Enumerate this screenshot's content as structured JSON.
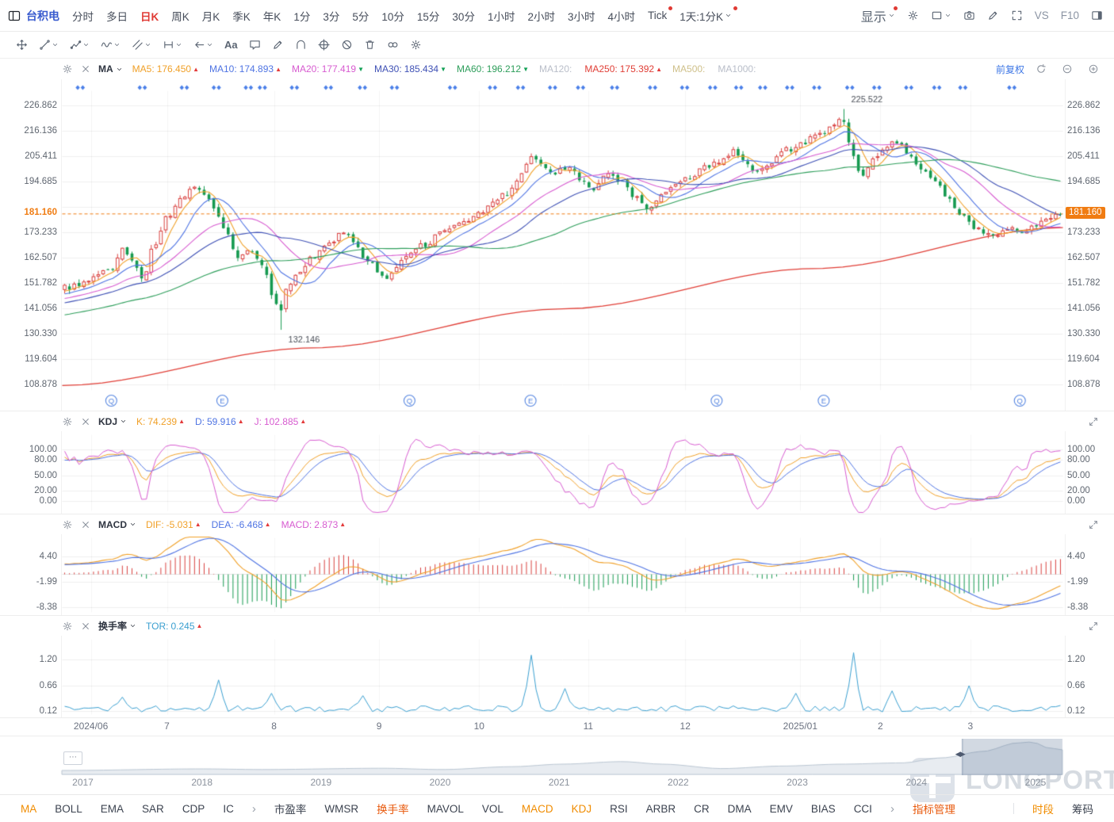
{
  "header": {
    "stock_name": "台积电",
    "timeframes": [
      {
        "label": "分时"
      },
      {
        "label": "多日"
      },
      {
        "label": "日K",
        "selected": true
      },
      {
        "label": "周K"
      },
      {
        "label": "月K"
      },
      {
        "label": "季K"
      },
      {
        "label": "年K"
      },
      {
        "label": "1分"
      },
      {
        "label": "3分"
      },
      {
        "label": "5分"
      },
      {
        "label": "10分"
      },
      {
        "label": "15分"
      },
      {
        "label": "30分"
      },
      {
        "label": "1小时"
      },
      {
        "label": "2小时"
      },
      {
        "label": "3小时"
      },
      {
        "label": "4小时"
      },
      {
        "label": "Tick",
        "dot": true
      },
      {
        "label": "1天:1分K",
        "dot": true,
        "dropdown": true
      }
    ],
    "display_label": "显示",
    "vs_label": "VS",
    "f10_label": "F10"
  },
  "drawbar": {
    "text_tool_label": "Aa",
    "tools": [
      {
        "name": "pan-tool"
      },
      {
        "name": "trendline-tool",
        "dd": true
      },
      {
        "name": "polyline-tool",
        "dd": true
      },
      {
        "name": "wave-tool",
        "dd": true
      },
      {
        "name": "channel-tool",
        "dd": true
      },
      {
        "name": "measure-tool",
        "dd": true
      },
      {
        "name": "arrow-tool",
        "dd": true
      },
      {
        "name": "text-tool"
      },
      {
        "name": "comment-tool"
      },
      {
        "name": "pencil-tool"
      },
      {
        "name": "arc-tool"
      },
      {
        "name": "fib-circle-tool"
      },
      {
        "name": "hide-drawings-button"
      },
      {
        "name": "delete-drawings-button"
      },
      {
        "name": "magnet-tool"
      },
      {
        "name": "drawing-settings-button",
        "icon": "gear"
      }
    ]
  },
  "main_panel": {
    "indicator_label": "MA",
    "items": [
      {
        "label": "MA5:",
        "value": "176.450",
        "color": "#f0a028",
        "dir": "up"
      },
      {
        "label": "MA10:",
        "value": "174.893",
        "color": "#4f74e3",
        "dir": "up"
      },
      {
        "label": "MA20:",
        "value": "177.419",
        "color": "#d75bd0",
        "dir": "down"
      },
      {
        "label": "MA30:",
        "value": "185.434",
        "color": "#3f51b5",
        "dir": "down"
      },
      {
        "label": "MA60:",
        "value": "196.212",
        "color": "#2e9e5b",
        "dir": "down"
      },
      {
        "label": "MA120:",
        "value": "",
        "color": "#b9bec9",
        "dir": ""
      },
      {
        "label": "MA250:",
        "value": "175.392",
        "color": "#e03e36",
        "dir": "up"
      },
      {
        "label": "MA500:",
        "value": "",
        "color": "#cfc08a",
        "dir": ""
      },
      {
        "label": "MA1000:",
        "value": "",
        "color": "#b9bec9",
        "dir": ""
      }
    ],
    "adjust_label": "前复权",
    "price_labels": [
      "226.862",
      "216.136",
      "205.411",
      "194.685",
      "173.233",
      "162.507",
      "151.782",
      "141.056",
      "130.330",
      "119.604",
      "108.878"
    ],
    "current_price": "181.160"
  },
  "kdj_panel": {
    "name": "KDJ",
    "items": [
      {
        "label": "K:",
        "value": "74.239",
        "color": "#f0a028",
        "dir": "up"
      },
      {
        "label": "D:",
        "value": "59.916",
        "color": "#4f74e3",
        "dir": "up"
      },
      {
        "label": "J:",
        "value": "102.885",
        "color": "#d75bd0",
        "dir": "up"
      }
    ],
    "axis": [
      "100.00",
      "80.00",
      "50.00",
      "20.00",
      "0.00"
    ]
  },
  "macd_panel": {
    "name": "MACD",
    "items": [
      {
        "label": "DIF:",
        "value": "-5.031",
        "color": "#f0a028",
        "dir": "up"
      },
      {
        "label": "DEA:",
        "value": "-6.468",
        "color": "#4f74e3",
        "dir": "up"
      },
      {
        "label": "MACD:",
        "value": "2.873",
        "color": "#d75bd0",
        "dir": "up"
      }
    ],
    "axis": [
      "4.40",
      "-1.99",
      "-8.38"
    ]
  },
  "tor_panel": {
    "name": "换手率",
    "items": [
      {
        "label": "TOR:",
        "value": "0.245",
        "color": "#3a9fd0",
        "dir": "up"
      }
    ],
    "axis": [
      "1.20",
      "0.66",
      "0.12"
    ]
  },
  "time_axis": [
    {
      "text": "2024/06",
      "f": 0.029
    },
    {
      "text": "7",
      "f": 0.105
    },
    {
      "text": "8",
      "f": 0.212
    },
    {
      "text": "9",
      "f": 0.317
    },
    {
      "text": "10",
      "f": 0.417
    },
    {
      "text": "11",
      "f": 0.526
    },
    {
      "text": "12",
      "f": 0.623
    },
    {
      "text": "2025/01",
      "f": 0.738
    },
    {
      "text": "2",
      "f": 0.818
    },
    {
      "text": "3",
      "f": 0.908
    }
  ],
  "markers": {
    "events_f": [
      0.018,
      0.08,
      0.122,
      0.154,
      0.186,
      0.2,
      0.232,
      0.266,
      0.3,
      0.332,
      0.39,
      0.43,
      0.458,
      0.49,
      0.518,
      0.552,
      0.59,
      0.622,
      0.65,
      0.676,
      0.7,
      0.727,
      0.754,
      0.787,
      0.814,
      0.846,
      0.874,
      0.9,
      0.949
    ],
    "announcements": [
      {
        "t": "Q",
        "f": 0.049
      },
      {
        "t": "E",
        "f": 0.16
      },
      {
        "t": "Q",
        "f": 0.347
      },
      {
        "t": "E",
        "f": 0.468
      },
      {
        "t": "Q",
        "f": 0.654
      },
      {
        "t": "E",
        "f": 0.761
      },
      {
        "t": "Q",
        "f": 0.957
      }
    ]
  },
  "annotations": {
    "high": "225.522",
    "low": "132.146"
  },
  "navigator": {
    "years": [
      {
        "text": "2017",
        "f": 0.021
      },
      {
        "text": "2018",
        "f": 0.14
      },
      {
        "text": "2019",
        "f": 0.259
      },
      {
        "text": "2020",
        "f": 0.378
      },
      {
        "text": "2021",
        "f": 0.497
      },
      {
        "text": "2022",
        "f": 0.616
      },
      {
        "text": "2023",
        "f": 0.735
      },
      {
        "text": "2024",
        "f": 0.854
      },
      {
        "text": "2025",
        "f": 0.973
      }
    ],
    "window": [
      0.9,
      1.0
    ],
    "menu_label": "⋯",
    "handle_label": "◀▶"
  },
  "tabbar": {
    "left": [
      {
        "label": "MA",
        "active": true
      },
      {
        "label": "BOLL"
      },
      {
        "label": "EMA"
      },
      {
        "label": "SAR"
      },
      {
        "label": "CDP"
      },
      {
        "label": "IC"
      }
    ],
    "mid": [
      {
        "label": "市盈率"
      },
      {
        "label": "WMSR"
      },
      {
        "label": "换手率",
        "hot": true
      },
      {
        "label": "MAVOL"
      },
      {
        "label": "VOL"
      },
      {
        "label": "MACD",
        "active": true
      },
      {
        "label": "KDJ",
        "active": true
      },
      {
        "label": "RSI"
      },
      {
        "label": "ARBR"
      },
      {
        "label": "CR"
      },
      {
        "label": "DMA"
      },
      {
        "label": "EMV"
      },
      {
        "label": "BIAS"
      },
      {
        "label": "CCI"
      }
    ],
    "manage_label": "指标管理",
    "right": [
      {
        "label": "时段",
        "active": true
      },
      {
        "label": "筹码"
      }
    ]
  },
  "watermark": "LONGPORT",
  "colors": {
    "up": "#d9403f",
    "down": "#169a50",
    "ma": [
      "#f0a028",
      "#4f74e3",
      "#d75bd0",
      "#3f51b5",
      "#2e9e5b"
    ],
    "ma250": "#e03e36",
    "kdj": [
      "#f0a028",
      "#4f74e3",
      "#d75bd0"
    ],
    "dif": "#f0a028",
    "dea": "#4f74e3",
    "tor": "#3a9fd0",
    "current": "#f07c12",
    "marker": "#4a7fe8",
    "grid": "#efefef",
    "tab_active": "#f08c00",
    "tab_hot": "#e8590c"
  },
  "chart_data": {
    "type": "candlestick",
    "title": "台积电 日K",
    "days": 208,
    "prehistory_days": 60,
    "prehistory_range": [
      128,
      148
    ],
    "high_value": 225.522,
    "low_value": 132.146,
    "last_close": 181.16,
    "tor_last": 0.245,
    "peak_f": 0.782,
    "crash_f": 0.216,
    "ma_periods": [
      5,
      10,
      20,
      30,
      60
    ],
    "close_anchors": [
      [
        0,
        150
      ],
      [
        0.02,
        152
      ],
      [
        0.045,
        157
      ],
      [
        0.06,
        166
      ],
      [
        0.072,
        158
      ],
      [
        0.078,
        153
      ],
      [
        0.09,
        168
      ],
      [
        0.105,
        181
      ],
      [
        0.118,
        188
      ],
      [
        0.13,
        193
      ],
      [
        0.14,
        190
      ],
      [
        0.15,
        183
      ],
      [
        0.163,
        172
      ],
      [
        0.175,
        163
      ],
      [
        0.188,
        166
      ],
      [
        0.2,
        158
      ],
      [
        0.208,
        148
      ],
      [
        0.216,
        140
      ],
      [
        0.222,
        150
      ],
      [
        0.235,
        157
      ],
      [
        0.25,
        163
      ],
      [
        0.265,
        168
      ],
      [
        0.28,
        173
      ],
      [
        0.292,
        168
      ],
      [
        0.305,
        160
      ],
      [
        0.325,
        154
      ],
      [
        0.34,
        162
      ],
      [
        0.36,
        168
      ],
      [
        0.38,
        173
      ],
      [
        0.4,
        177
      ],
      [
        0.415,
        181
      ],
      [
        0.43,
        186
      ],
      [
        0.445,
        190
      ],
      [
        0.457,
        197
      ],
      [
        0.468,
        205
      ],
      [
        0.478,
        203
      ],
      [
        0.49,
        198
      ],
      [
        0.505,
        201
      ],
      [
        0.52,
        196
      ],
      [
        0.532,
        191
      ],
      [
        0.545,
        199
      ],
      [
        0.558,
        195
      ],
      [
        0.572,
        188
      ],
      [
        0.585,
        184
      ],
      [
        0.6,
        189
      ],
      [
        0.615,
        194
      ],
      [
        0.63,
        197
      ],
      [
        0.645,
        201
      ],
      [
        0.66,
        204
      ],
      [
        0.672,
        208
      ],
      [
        0.683,
        203
      ],
      [
        0.695,
        198
      ],
      [
        0.71,
        203
      ],
      [
        0.725,
        208
      ],
      [
        0.74,
        211
      ],
      [
        0.755,
        214
      ],
      [
        0.768,
        217
      ],
      [
        0.782,
        221
      ],
      [
        0.792,
        206
      ],
      [
        0.8,
        196
      ],
      [
        0.81,
        203
      ],
      [
        0.822,
        208
      ],
      [
        0.835,
        212
      ],
      [
        0.848,
        206
      ],
      [
        0.862,
        199
      ],
      [
        0.875,
        194
      ],
      [
        0.888,
        188
      ],
      [
        0.9,
        181
      ],
      [
        0.912,
        176
      ],
      [
        0.925,
        173
      ],
      [
        0.935,
        170.5
      ],
      [
        0.948,
        175
      ],
      [
        0.96,
        173.5
      ],
      [
        0.972,
        176
      ],
      [
        0.985,
        178
      ],
      [
        1,
        181.16
      ]
    ],
    "ma250_anchors": [
      [
        0,
        108.6
      ],
      [
        0.25,
        124.5
      ],
      [
        0.5,
        141
      ],
      [
        0.75,
        158
      ],
      [
        1,
        175.392
      ]
    ],
    "turnover_spikes": [
      [
        0.06,
        0.42
      ],
      [
        0.155,
        0.78
      ],
      [
        0.21,
        0.5
      ],
      [
        0.3,
        0.45
      ],
      [
        0.468,
        1.3
      ],
      [
        0.5,
        0.6
      ],
      [
        0.735,
        0.5
      ],
      [
        0.79,
        1.35
      ],
      [
        0.83,
        0.55
      ],
      [
        0.908,
        0.66
      ],
      [
        1.0,
        0.245
      ]
    ],
    "nav_anchors": [
      [
        0,
        0.1
      ],
      [
        0.14,
        0.15
      ],
      [
        0.2,
        0.13
      ],
      [
        0.32,
        0.17
      ],
      [
        0.38,
        0.13
      ],
      [
        0.45,
        0.22
      ],
      [
        0.5,
        0.3
      ],
      [
        0.56,
        0.38
      ],
      [
        0.6,
        0.3
      ],
      [
        0.66,
        0.16
      ],
      [
        0.72,
        0.24
      ],
      [
        0.78,
        0.3
      ],
      [
        0.84,
        0.34
      ],
      [
        0.88,
        0.5
      ],
      [
        0.92,
        0.7
      ],
      [
        0.955,
        0.97
      ],
      [
        0.97,
        1.0
      ],
      [
        0.985,
        0.82
      ],
      [
        1,
        0.75
      ]
    ]
  }
}
